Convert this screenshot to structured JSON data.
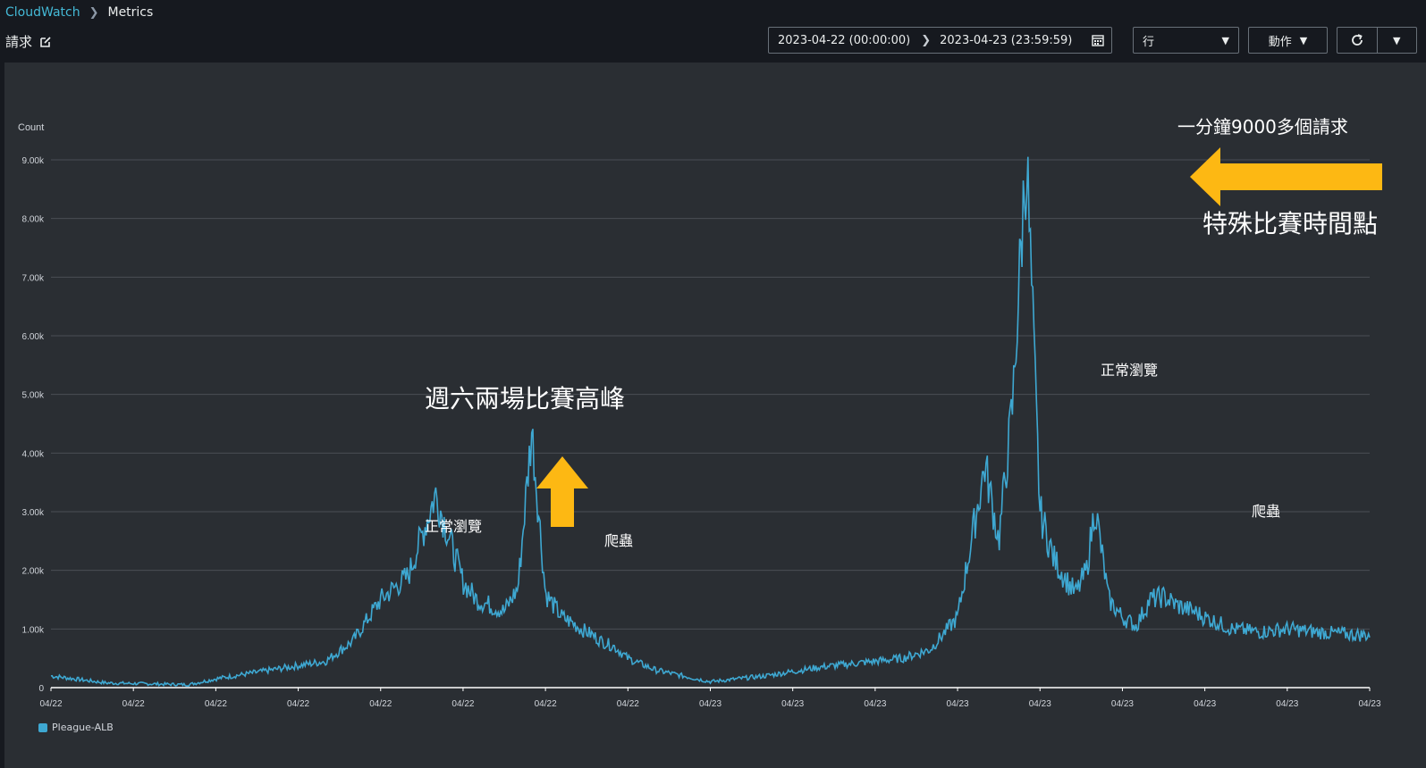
{
  "breadcrumb": {
    "service": "CloudWatch",
    "current": "Metrics"
  },
  "header": {
    "title": "請求"
  },
  "toolbar": {
    "range_start": "2023-04-22 (00:00:00)",
    "range_end": "2023-04-23 (23:59:59)",
    "view_select": "行",
    "actions_label": "動作"
  },
  "icons": [
    "chevron-right-icon",
    "edit-icon",
    "calendar-icon",
    "caret-down-icon",
    "refresh-icon"
  ],
  "colors": {
    "series": "#3ea8d2",
    "accent": "#44b9d6",
    "annotation_arrow": "#fdb813"
  },
  "chart_data": {
    "type": "line",
    "ylabel": "Count",
    "ylim": [
      0,
      9000
    ],
    "yticks": [
      "0",
      "1.00k",
      "2.00k",
      "3.00k",
      "4.00k",
      "5.00k",
      "6.00k",
      "7.00k",
      "8.00k",
      "9.00k"
    ],
    "xticks": [
      "04/22",
      "04/22",
      "04/22",
      "04/22",
      "04/22",
      "04/22",
      "04/22",
      "04/22",
      "04/23",
      "04/23",
      "04/23",
      "04/23",
      "04/23",
      "04/23",
      "04/23",
      "04/23",
      "04/23"
    ],
    "grid": true,
    "legend_position": "bottom-left",
    "series": [
      {
        "name": "Pleague-ALB",
        "x_hours": [
          0,
          2,
          4,
          5,
          6,
          8,
          10,
          11,
          12,
          13,
          14,
          15,
          15.5,
          16,
          16.5,
          17,
          17.5,
          18,
          18.6,
          19,
          19.3,
          19.7,
          20,
          20.5,
          21,
          22,
          24,
          26,
          28,
          29,
          30,
          31,
          32,
          33,
          34,
          34.5,
          35,
          35.5,
          36,
          36.5,
          37,
          37.3,
          37.7,
          38,
          38.5,
          39,
          39.5,
          40,
          40.5,
          41,
          41.6,
          42,
          42.5,
          43,
          44,
          45,
          45.5,
          46,
          47,
          47.5,
          48
        ],
        "values": [
          200,
          80,
          60,
          50,
          150,
          300,
          450,
          800,
          1500,
          1900,
          3300,
          1800,
          1500,
          1400,
          1300,
          1700,
          4400,
          1600,
          1200,
          1100,
          1000,
          900,
          800,
          700,
          500,
          300,
          100,
          200,
          350,
          400,
          450,
          500,
          650,
          1200,
          3800,
          2500,
          4800,
          9150,
          3000,
          2200,
          1800,
          1600,
          2000,
          3100,
          1500,
          1200,
          1050,
          1500,
          1550,
          1400,
          1300,
          1200,
          1100,
          1000,
          950,
          1000,
          980,
          950,
          920,
          900,
          900
        ]
      }
    ],
    "annotations": [
      "週六兩場比賽高峰",
      "正常瀏覽",
      "爬蟲",
      "正常瀏覽",
      "爬蟲",
      "一分鐘9000多個請求",
      "特殊比賽時間點"
    ]
  }
}
